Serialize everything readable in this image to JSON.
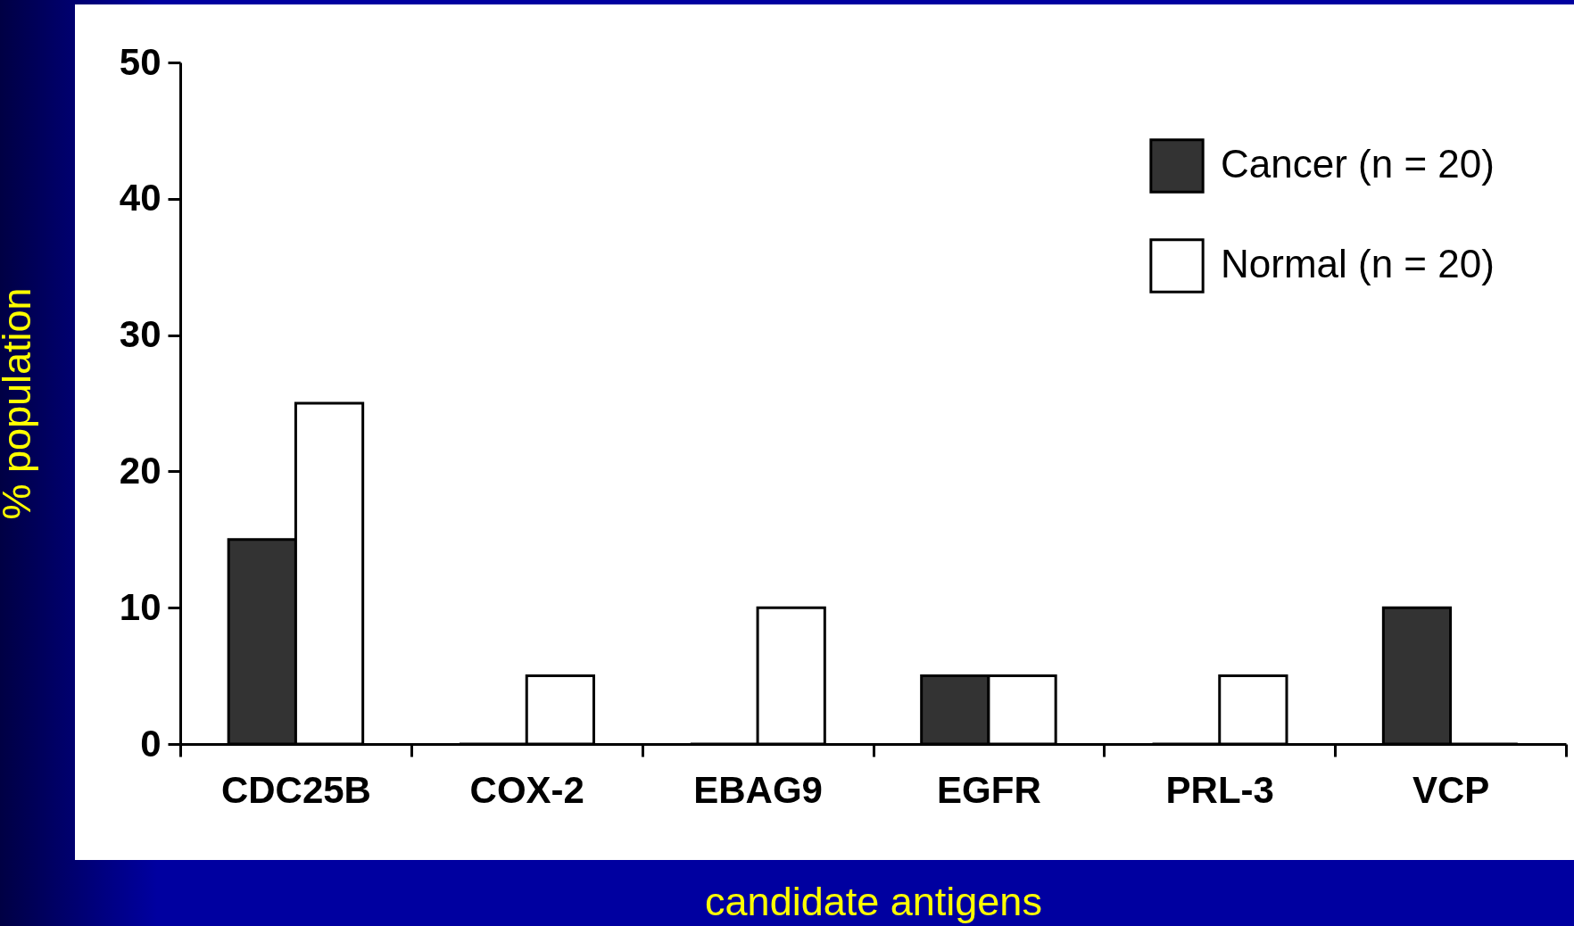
{
  "chart_data": {
    "type": "bar",
    "xlabel": "candidate antigens",
    "ylabel": "% population",
    "categories": [
      "CDC25B",
      "COX-2",
      "EBAG9",
      "EGFR",
      "PRL-3",
      "VCP"
    ],
    "series": [
      {
        "name": "Cancer (n = 20)",
        "color": "#333333",
        "values": [
          15,
          0,
          0,
          5,
          0,
          10
        ]
      },
      {
        "name": "Normal (n = 20)",
        "color": "#ffffff",
        "values": [
          25,
          5,
          10,
          5,
          5,
          0
        ]
      }
    ],
    "ylim": [
      0,
      50
    ],
    "yticks": [
      0,
      10,
      20,
      30,
      40,
      50
    ],
    "grid": false,
    "legend": "top right"
  }
}
